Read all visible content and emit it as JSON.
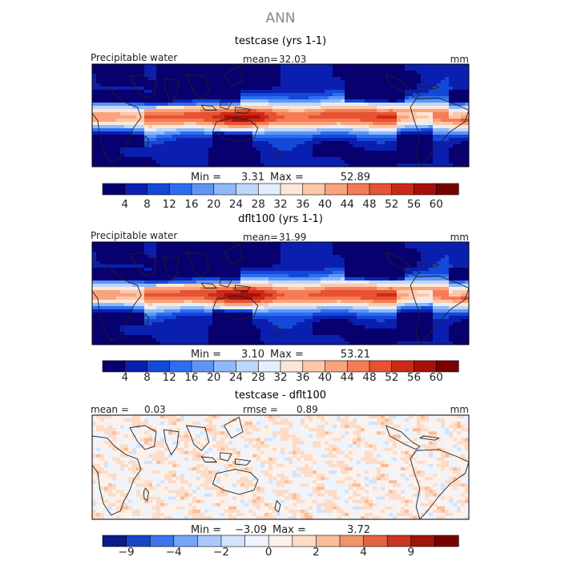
{
  "page": {
    "title": "ANN"
  },
  "colors": {
    "pw_scale": [
      "#08006e",
      "#0a1fb0",
      "#1448d8",
      "#2c6ef2",
      "#5e95f5",
      "#8fb8f8",
      "#bdd7fb",
      "#e4eefc",
      "#fde6d6",
      "#fcc8a8",
      "#f9a47e",
      "#f47c55",
      "#e65232",
      "#cc2a17",
      "#a8110a",
      "#7a0000"
    ],
    "diff_scale": [
      "#0a1a8a",
      "#1745c8",
      "#3c76ec",
      "#76a6f6",
      "#aac9fa",
      "#d2e3fc",
      "#eef4fd",
      "#fdf1ea",
      "#fcdcc7",
      "#f9bd9c",
      "#f2936c",
      "#e26441",
      "#c93722",
      "#a21408",
      "#7a0000"
    ]
  },
  "chart_data": [
    {
      "type": "heatmap",
      "title": "testcase (yrs 1-1)",
      "variable_label": "Precipitable water",
      "mean_label": "mean=",
      "mean": "32.03",
      "units": "mm",
      "min_label": "Min =",
      "min": "3.31",
      "max_label": "Max =",
      "max": "52.89",
      "colorbar_ticks": [
        "4",
        "8",
        "12",
        "16",
        "20",
        "24",
        "28",
        "32",
        "36",
        "40",
        "44",
        "48",
        "52",
        "56",
        "60"
      ],
      "field": {
        "equator_peak": 50,
        "pole_value": 4,
        "warm_pool_boost": 6
      }
    },
    {
      "type": "heatmap",
      "title": "dflt100 (yrs 1-1)",
      "variable_label": "Precipitable water",
      "mean_label": "mean=",
      "mean": "31.99",
      "units": "mm",
      "min_label": "Min =",
      "min": "3.10",
      "max_label": "Max =",
      "max": "53.21",
      "colorbar_ticks": [
        "4",
        "8",
        "12",
        "16",
        "20",
        "24",
        "28",
        "32",
        "36",
        "40",
        "44",
        "48",
        "52",
        "56",
        "60"
      ],
      "field": {
        "equator_peak": 50,
        "pole_value": 4,
        "warm_pool_boost": 7
      }
    },
    {
      "type": "heatmap",
      "title": "testcase - dflt100",
      "mean_label": "mean =",
      "mean": "0.03",
      "rmse_label": "rmse =",
      "rmse": "0.89",
      "units": "mm",
      "min_label": "Min =",
      "min": "−3.09",
      "max_label": "Max =",
      "max": "3.72",
      "colorbar_ticks": [
        "−9",
        "",
        "−4",
        "",
        "−2",
        "",
        "0",
        "",
        "2",
        "",
        "4",
        "",
        "9",
        ""
      ],
      "field": {
        "amplitude": 1.6
      }
    }
  ]
}
